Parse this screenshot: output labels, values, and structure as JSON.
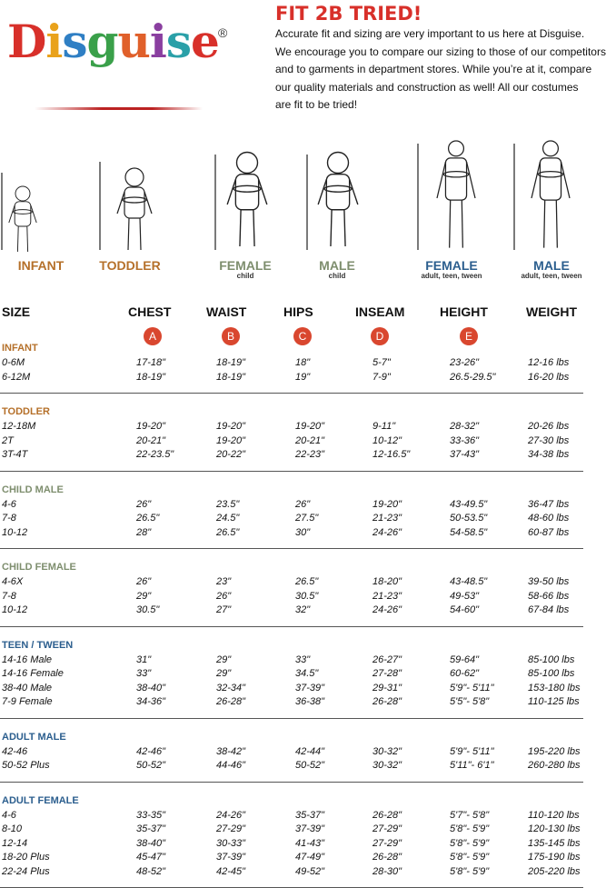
{
  "logo": {
    "name": "Disguise",
    "mark": "®"
  },
  "header": {
    "title": "FIT 2B TRIED!",
    "lines": [
      "Accurate fit and sizing are very important to us here at Disguise.",
      "We encourage you to compare our sizing to those of our competitors",
      "and to garments in department stores. While you’re at it, compare",
      "our quality materials and construction as well! All our costumes",
      "are fit to be tried!"
    ]
  },
  "figures": [
    {
      "label": "INFANT"
    },
    {
      "label": "TODDLER"
    },
    {
      "label": "FEMALE",
      "sub": "child"
    },
    {
      "label": "MALE",
      "sub": "child"
    },
    {
      "label": "FEMALE",
      "sub": "adult, teen, tween"
    },
    {
      "label": "MALE",
      "sub": "adult, teen, tween"
    }
  ],
  "table": {
    "columns": [
      "SIZE",
      "CHEST",
      "WAIST",
      "HIPS",
      "INSEAM",
      "HEIGHT",
      "WEIGHT"
    ],
    "letters": [
      "A",
      "B",
      "C",
      "D",
      "E"
    ],
    "groups": [
      {
        "title": "INFANT",
        "rows": [
          [
            "0-6M",
            "17-18\"",
            "18-19\"",
            "18\"",
            "5-7\"",
            "23-26\"",
            "12-16 lbs"
          ],
          [
            "6-12M",
            "18-19\"",
            "18-19\"",
            "19\"",
            "7-9\"",
            "26.5-29.5\"",
            "16-20 lbs"
          ]
        ]
      },
      {
        "title": "TODDLER",
        "rows": [
          [
            "12-18M",
            "19-20\"",
            "19-20\"",
            "19-20\"",
            "9-11\"",
            "28-32\"",
            "20-26 lbs"
          ],
          [
            "2T",
            "20-21\"",
            "19-20\"",
            "20-21\"",
            "10-12\"",
            "33-36\"",
            "27-30 lbs"
          ],
          [
            "3T-4T",
            "22-23.5\"",
            "20-22\"",
            "22-23\"",
            "12-16.5\"",
            "37-43\"",
            "34-38 lbs"
          ]
        ]
      },
      {
        "title": "CHILD MALE",
        "rows": [
          [
            "4-6",
            "26\"",
            "23.5\"",
            "26\"",
            "19-20\"",
            "43-49.5\"",
            "36-47 lbs"
          ],
          [
            "7-8",
            "26.5\"",
            "24.5\"",
            "27.5\"",
            "21-23\"",
            "50-53.5\"",
            "48-60 lbs"
          ],
          [
            "10-12",
            "28\"",
            "26.5\"",
            "30\"",
            "24-26\"",
            "54-58.5\"",
            "60-87 lbs"
          ]
        ]
      },
      {
        "title": "CHILD FEMALE",
        "rows": [
          [
            "4-6X",
            "26\"",
            "23\"",
            "26.5\"",
            "18-20\"",
            "43-48.5\"",
            "39-50 lbs"
          ],
          [
            "7-8",
            "29\"",
            "26\"",
            "30.5\"",
            "21-23\"",
            "49-53\"",
            "58-66 lbs"
          ],
          [
            "10-12",
            "30.5\"",
            "27\"",
            "32\"",
            "24-26\"",
            "54-60\"",
            "67-84 lbs"
          ]
        ]
      },
      {
        "title": "TEEN / TWEEN",
        "rows": [
          [
            "14-16 Male",
            "31\"",
            "29\"",
            "33\"",
            "26-27\"",
            "59-64\"",
            "85-100 lbs"
          ],
          [
            "14-16 Female",
            "33\"",
            "29\"",
            "34.5\"",
            "27-28\"",
            "60-62\"",
            "85-100 lbs"
          ],
          [
            "38-40 Male",
            "38-40\"",
            "32-34\"",
            "37-39\"",
            "29-31\"",
            "5'9\"- 5'11\"",
            "153-180 lbs"
          ],
          [
            "7-9 Female",
            "34-36\"",
            "26-28\"",
            "36-38\"",
            "26-28\"",
            "5'5\"- 5'8\"",
            "110-125 lbs"
          ]
        ]
      },
      {
        "title": "ADULT MALE",
        "rows": [
          [
            "42-46",
            "42-46\"",
            "38-42\"",
            "42-44\"",
            "30-32\"",
            "5'9\"- 5'11\"",
            "195-220 lbs"
          ],
          [
            "50-52 Plus",
            "50-52\"",
            "44-46\"",
            "50-52\"",
            "30-32\"",
            "5'11\"- 6'1\"",
            "260-280 lbs"
          ]
        ]
      },
      {
        "title": "ADULT FEMALE",
        "rows": [
          [
            "4-6",
            "33-35\"",
            "24-26\"",
            "35-37\"",
            "26-28\"",
            "5'7\"- 5'8\"",
            "110-120 lbs"
          ],
          [
            "8-10",
            "35-37\"",
            "27-29\"",
            "37-39\"",
            "27-29\"",
            "5'8\"- 5'9\"",
            "120-130 lbs"
          ],
          [
            "12-14",
            "38-40\"",
            "30-33\"",
            "41-43\"",
            "27-29\"",
            "5'8\"- 5'9\"",
            "135-145 lbs"
          ],
          [
            "18-20 Plus",
            "45-47\"",
            "37-39\"",
            "47-49\"",
            "26-28\"",
            "5'8\"- 5'9\"",
            "175-190 lbs"
          ],
          [
            "22-24 Plus",
            "48-52\"",
            "42-45\"",
            "49-52\"",
            "28-30\"",
            "5'8\"- 5'9\"",
            "205-220 lbs"
          ]
        ]
      }
    ]
  }
}
